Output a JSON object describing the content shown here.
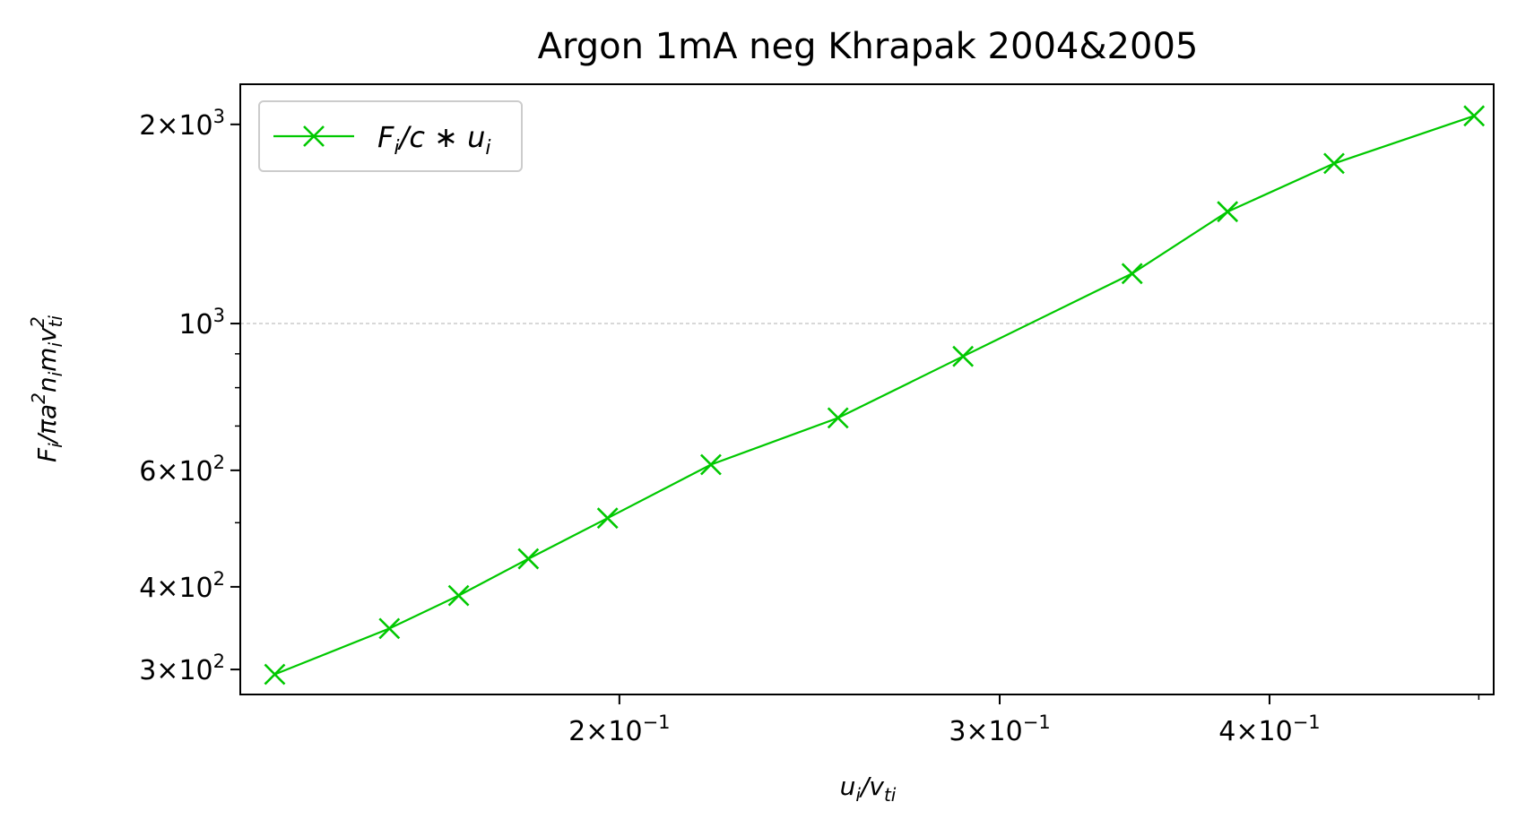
{
  "chart_data": {
    "type": "line",
    "title": "Argon 1mA neg Khrapak 2004&2005",
    "xlabel": "u_i/v_ti",
    "ylabel": "F_i/πa^2 n_i m_i v_ti^2",
    "x_scale": "log",
    "y_scale": "log",
    "xlim": [
      0.1335,
      0.508
    ],
    "ylim": [
      275,
      2300
    ],
    "grid": "horizontal at 10^3 only",
    "legend_position": "top-left",
    "x_major_ticks": [
      {
        "value": 0.2,
        "mantissa": "2",
        "exponent": "−1"
      },
      {
        "value": 0.3,
        "mantissa": "3",
        "exponent": "−1"
      },
      {
        "value": 0.4,
        "mantissa": "4",
        "exponent": "−1"
      }
    ],
    "x_minor_ticks": [
      0.5
    ],
    "y_major_ticks": [
      {
        "value": 300,
        "mantissa": "3",
        "exponent": "2"
      },
      {
        "value": 400,
        "mantissa": "4",
        "exponent": "2"
      },
      {
        "value": 600,
        "mantissa": "6",
        "exponent": "2"
      },
      {
        "value": 1000,
        "mantissa": "",
        "exponent": "3"
      },
      {
        "value": 2000,
        "mantissa": "2",
        "exponent": "3"
      }
    ],
    "y_minor_ticks": [
      500,
      700,
      800,
      900
    ],
    "series": [
      {
        "name": "F_i/c*u_i",
        "color": "#00c800",
        "marker": "x",
        "x": [
          0.1385,
          0.1565,
          0.1685,
          0.1815,
          0.1975,
          0.2205,
          0.2525,
          0.2885,
          0.3455,
          0.3825,
          0.4285,
          0.4975
        ],
        "y": [
          295,
          346,
          388,
          441,
          508,
          612,
          720,
          892,
          1190,
          1476,
          1746,
          2060
        ]
      }
    ]
  }
}
